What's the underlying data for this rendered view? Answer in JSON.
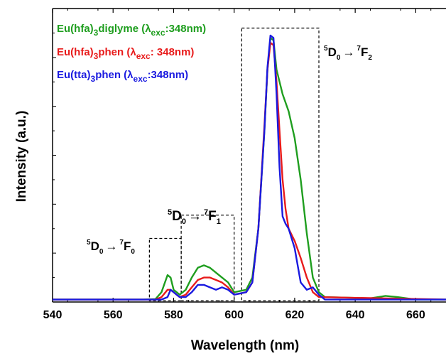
{
  "chart_data": {
    "type": "line",
    "xlabel": "Wavelength (nm)",
    "ylabel": "Intensity (a.u.)",
    "xlim": [
      540,
      670
    ],
    "ylim": [
      0,
      1.2
    ],
    "x_ticks": [
      "540",
      "560",
      "580",
      "600",
      "620",
      "640",
      "660"
    ],
    "grid": false,
    "legend_position": "top-left",
    "series": [
      {
        "name": "Eu(hfa)3diglyme (λexc:348nm)",
        "legend": {
          "base": "Eu(hfa)",
          "sub1": "3",
          "mid": "diglyme (λ",
          "sub2": "exc",
          "tail": ":348nm)"
        },
        "color": "#1f9e1f",
        "points": [
          [
            540,
            0.01
          ],
          [
            570,
            0.01
          ],
          [
            574,
            0.012
          ],
          [
            576,
            0.04
          ],
          [
            578,
            0.11
          ],
          [
            579,
            0.1
          ],
          [
            580,
            0.05
          ],
          [
            581,
            0.04
          ],
          [
            582,
            0.03
          ],
          [
            584,
            0.05
          ],
          [
            586,
            0.1
          ],
          [
            588,
            0.14
          ],
          [
            590,
            0.15
          ],
          [
            592,
            0.14
          ],
          [
            594,
            0.12
          ],
          [
            596,
            0.1
          ],
          [
            598,
            0.08
          ],
          [
            600,
            0.04
          ],
          [
            604,
            0.05
          ],
          [
            606,
            0.1
          ],
          [
            608,
            0.3
          ],
          [
            610,
            0.7
          ],
          [
            611,
            0.95
          ],
          [
            612,
            1.08
          ],
          [
            613,
            1.07
          ],
          [
            614,
            0.95
          ],
          [
            616,
            0.85
          ],
          [
            618,
            0.78
          ],
          [
            620,
            0.67
          ],
          [
            622,
            0.5
          ],
          [
            624,
            0.28
          ],
          [
            626,
            0.1
          ],
          [
            628,
            0.04
          ],
          [
            630,
            0.02
          ],
          [
            645,
            0.015
          ],
          [
            650,
            0.025
          ],
          [
            654,
            0.02
          ],
          [
            660,
            0.01
          ],
          [
            670,
            0.01
          ]
        ]
      },
      {
        "name": "Eu(hfa)3phen (λexc: 348nm)",
        "legend": {
          "base": "Eu(hfa)",
          "sub1": "3",
          "mid": "phen (λ",
          "sub2": "exc",
          "tail": ": 348nm)"
        },
        "color": "#e81b1b",
        "points": [
          [
            540,
            0.01
          ],
          [
            574,
            0.01
          ],
          [
            576,
            0.02
          ],
          [
            578,
            0.05
          ],
          [
            579,
            0.05
          ],
          [
            580,
            0.04
          ],
          [
            581,
            0.03
          ],
          [
            582,
            0.02
          ],
          [
            584,
            0.03
          ],
          [
            586,
            0.06
          ],
          [
            588,
            0.09
          ],
          [
            590,
            0.1
          ],
          [
            592,
            0.1
          ],
          [
            594,
            0.09
          ],
          [
            596,
            0.08
          ],
          [
            598,
            0.06
          ],
          [
            600,
            0.03
          ],
          [
            604,
            0.04
          ],
          [
            606,
            0.08
          ],
          [
            608,
            0.3
          ],
          [
            610,
            0.72
          ],
          [
            611,
            0.95
          ],
          [
            612,
            1.06
          ],
          [
            613,
            1.05
          ],
          [
            614,
            0.9
          ],
          [
            615,
            0.7
          ],
          [
            616,
            0.5
          ],
          [
            617,
            0.38
          ],
          [
            618,
            0.3
          ],
          [
            620,
            0.25
          ],
          [
            622,
            0.18
          ],
          [
            624,
            0.1
          ],
          [
            626,
            0.04
          ],
          [
            628,
            0.02
          ],
          [
            670,
            0.01
          ]
        ]
      },
      {
        "name": "Eu(tta)3phen (λexc:348nm)",
        "legend": {
          "base": "Eu(tta)",
          "sub1": "3",
          "mid": "phen (λ",
          "sub2": "exc",
          "tail": ":348nm)"
        },
        "color": "#1a1ae0",
        "points": [
          [
            540,
            0.01
          ],
          [
            576,
            0.01
          ],
          [
            578,
            0.02
          ],
          [
            579,
            0.05
          ],
          [
            580,
            0.04
          ],
          [
            581,
            0.03
          ],
          [
            582,
            0.02
          ],
          [
            584,
            0.02
          ],
          [
            586,
            0.04
          ],
          [
            588,
            0.07
          ],
          [
            590,
            0.07
          ],
          [
            592,
            0.06
          ],
          [
            594,
            0.05
          ],
          [
            596,
            0.06
          ],
          [
            598,
            0.05
          ],
          [
            600,
            0.03
          ],
          [
            604,
            0.04
          ],
          [
            606,
            0.08
          ],
          [
            608,
            0.3
          ],
          [
            610,
            0.7
          ],
          [
            611,
            0.96
          ],
          [
            612,
            1.09
          ],
          [
            613,
            1.08
          ],
          [
            614,
            0.85
          ],
          [
            615,
            0.55
          ],
          [
            616,
            0.35
          ],
          [
            617,
            0.32
          ],
          [
            618,
            0.3
          ],
          [
            620,
            0.22
          ],
          [
            622,
            0.08
          ],
          [
            624,
            0.05
          ],
          [
            626,
            0.06
          ],
          [
            628,
            0.03
          ],
          [
            630,
            0.01
          ],
          [
            670,
            0.01
          ]
        ]
      }
    ],
    "annotations": [
      {
        "main": "D",
        "pre_sup": "5",
        "sub": "0",
        "arrow": "→",
        "post_sup": "7",
        "target": "F",
        "target_sub": "0"
      },
      {
        "main": "D",
        "pre_sup": "5",
        "sub": "0",
        "arrow": "→",
        "post_sup": "7",
        "target": "F",
        "target_sub": "1"
      },
      {
        "main": "D",
        "pre_sup": "5",
        "sub": "0",
        "arrow": "→",
        "post_sup": "7",
        "target": "F",
        "target_sub": "2"
      }
    ]
  }
}
